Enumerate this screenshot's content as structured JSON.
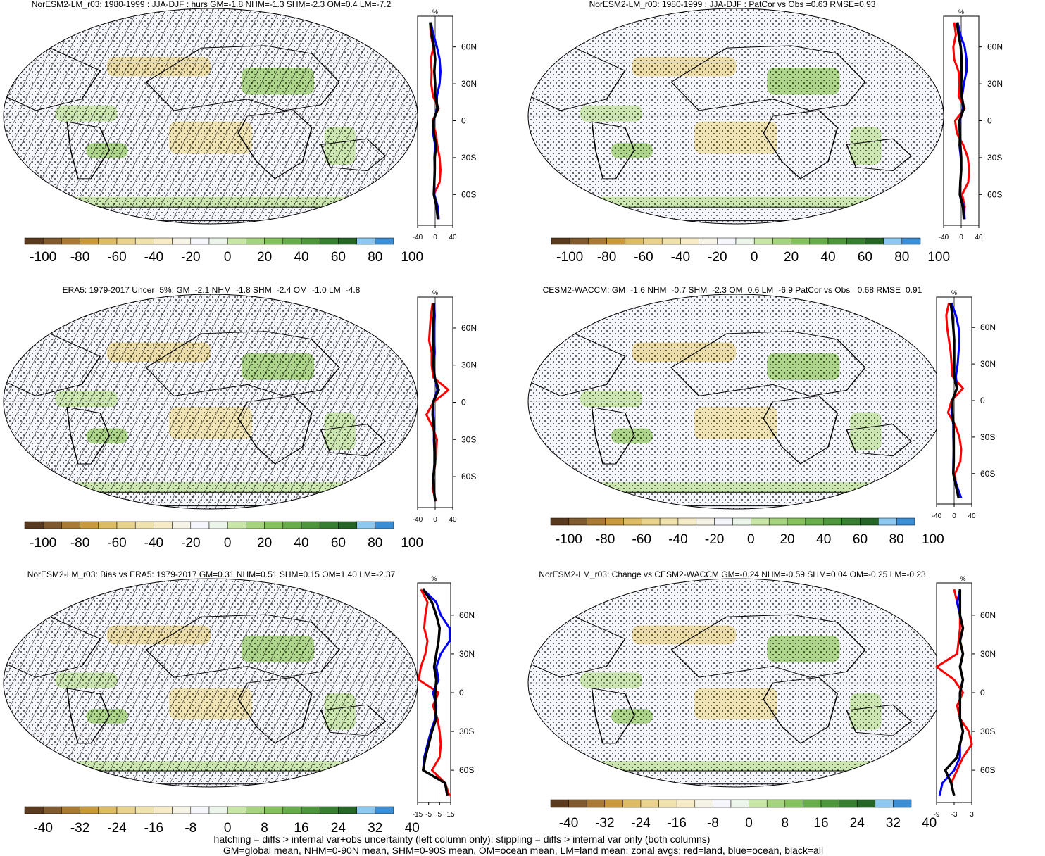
{
  "colorbars": {
    "pct": {
      "colors": [
        "#5a3a1e",
        "#7e5a2e",
        "#a87a33",
        "#c99a3c",
        "#dcbb62",
        "#e9d38c",
        "#f0e2ac",
        "#f5ecc7",
        "#f5f2e6",
        "#f5f5fc",
        "#ecf5ea",
        "#c8e6a6",
        "#a5d37e",
        "#85c25e",
        "#67ad4a",
        "#4d963c",
        "#387e31",
        "#256627",
        "#8cc8f0",
        "#3a8ed6"
      ],
      "labels": [
        "-100",
        "-80",
        "-60",
        "-40",
        "-20",
        "0",
        "20",
        "40",
        "60",
        "80",
        "100"
      ]
    },
    "diff": {
      "colors": [
        "#5a3a1e",
        "#7e5a2e",
        "#a87a33",
        "#c99a3c",
        "#dcbb62",
        "#e9d38c",
        "#f0e2ac",
        "#f5ecc7",
        "#f5f2e6",
        "#f5f5fc",
        "#ecf5ea",
        "#c8e6a6",
        "#a5d37e",
        "#85c25e",
        "#67ad4a",
        "#4d963c",
        "#387e31",
        "#256627",
        "#8cc8f0",
        "#3a8ed6"
      ],
      "labels": [
        "-40",
        "-32",
        "-24",
        "-16",
        "-8",
        "0",
        "8",
        "16",
        "24",
        "32",
        "40"
      ]
    }
  },
  "chart_data": [
    {
      "type": "heatmap",
      "title": "NorESM2-LM_r03: 1980-1999 : JJA-DJF : hurs GM=-1.8 NHM=-1.3 SHM=-2.3 OM=0.4 LM=-7.2",
      "colorbar": "pct",
      "hatching": true,
      "zonal_mean": {
        "unit": "%",
        "xlim": [
          -40,
          40
        ],
        "xticks": [
          "-40",
          "0",
          "40"
        ],
        "yticks": [
          "60N",
          "30N",
          "0",
          "30S",
          "60S"
        ],
        "lat": [
          80,
          70,
          60,
          50,
          40,
          30,
          20,
          10,
          0,
          -10,
          -20,
          -30,
          -40,
          -50,
          -60,
          -70,
          -80
        ],
        "series": [
          {
            "color": "red",
            "values": [
              -12,
              -10,
              -4,
              -10,
              -8,
              -9,
              -5,
              8,
              -6,
              1,
              5,
              10,
              12,
              10,
              -3,
              5,
              8
            ]
          },
          {
            "color": "blue",
            "values": [
              -10,
              -4,
              4,
              10,
              12,
              10,
              4,
              4,
              -3,
              -5,
              0,
              -2,
              -1,
              -2,
              -2,
              6,
              8
            ]
          },
          {
            "color": "black",
            "values": [
              -11,
              -8,
              -3,
              0,
              -2,
              0,
              0,
              6,
              -4,
              -3,
              2,
              -1,
              -1,
              -2,
              -3,
              3,
              6
            ]
          }
        ]
      }
    },
    {
      "type": "heatmap",
      "title": "NorESM2-LM_r03: 1980-1999 : JJA-DJF : PatCor vs Obs =0.63 RMSE=0.93",
      "colorbar": "pct",
      "hatching": false,
      "zonal_mean": {
        "unit": "%",
        "xlim": [
          -40,
          40
        ],
        "xticks": [
          "-40",
          "0",
          "40"
        ],
        "yticks": [
          "60N",
          "30N",
          "0",
          "30S",
          "60S"
        ],
        "lat": [
          80,
          70,
          60,
          50,
          40,
          30,
          20,
          10,
          0,
          -10,
          -20,
          -30,
          -40,
          -50,
          -60,
          -70,
          -80
        ],
        "series": [
          {
            "color": "red",
            "values": [
              -16,
              -12,
              -18,
              -16,
              -6,
              -4,
              -6,
              8,
              -14,
              -10,
              5,
              15,
              18,
              16,
              2,
              8,
              6
            ]
          },
          {
            "color": "blue",
            "values": [
              -8,
              -2,
              8,
              12,
              12,
              6,
              2,
              4,
              -3,
              -3,
              -4,
              -1,
              0,
              -2,
              -3,
              6,
              8
            ]
          },
          {
            "color": "black",
            "values": [
              -10,
              -6,
              -1,
              1,
              1,
              0,
              1,
              6,
              -4,
              -3,
              -2,
              0,
              0,
              -2,
              -3,
              4,
              6
            ]
          }
        ]
      }
    },
    {
      "type": "heatmap",
      "title": "ERA5: 1979-2017 Uncer=5%: GM=-2.1 NHM=-1.8 SHM=-2.4 OM=-1.0 LM=-4.8",
      "colorbar": "pct",
      "hatching": true,
      "zonal_mean": {
        "unit": "%",
        "xlim": [
          -40,
          40
        ],
        "xticks": [
          "-40",
          "0",
          "40"
        ],
        "yticks": [
          "60N",
          "30N",
          "0",
          "30S",
          "60S"
        ],
        "lat": [
          80,
          70,
          60,
          50,
          40,
          30,
          20,
          10,
          0,
          -10,
          -20,
          -30,
          -40,
          -50,
          -60,
          -70,
          -80
        ],
        "series": [
          {
            "color": "red",
            "values": [
              -6,
              -10,
              -12,
              -14,
              -8,
              -8,
              -4,
              30,
              -4,
              -20,
              -6,
              4,
              2,
              0,
              -4,
              -6,
              2
            ]
          },
          {
            "color": "blue",
            "values": [
              -2,
              -1,
              -2,
              -2,
              -1,
              -3,
              -1,
              5,
              -5,
              -4,
              -2,
              -3,
              -2,
              -2,
              -4,
              -3,
              0
            ]
          },
          {
            "color": "black",
            "values": [
              -3,
              -3,
              -5,
              -5,
              -3,
              -4,
              -1,
              8,
              -5,
              -6,
              -3,
              -2,
              -1,
              -1,
              -4,
              -3,
              0
            ]
          }
        ]
      }
    },
    {
      "type": "heatmap",
      "title": "CESM2-WACCM: GM=-1.6 NHM=-0.7 SHM=-2.3 OM=0.6 LM=-6.9 PatCor vs Obs =0.68 RMSE=0.91",
      "colorbar": "pct",
      "hatching": false,
      "zonal_mean": {
        "unit": "%",
        "xlim": [
          -40,
          40
        ],
        "xticks": [
          "-40",
          "0",
          "40"
        ],
        "yticks": [
          "60N",
          "30N",
          "0",
          "30S",
          "60S"
        ],
        "lat": [
          80,
          70,
          60,
          50,
          40,
          30,
          20,
          10,
          0,
          -10,
          -20,
          -30,
          -40,
          -50,
          -60,
          -70,
          -80
        ],
        "series": [
          {
            "color": "red",
            "values": [
              -12,
              -18,
              -16,
              -12,
              -8,
              -6,
              -4,
              20,
              -6,
              -14,
              2,
              12,
              16,
              14,
              2,
              4,
              10
            ]
          },
          {
            "color": "blue",
            "values": [
              -6,
              4,
              10,
              12,
              10,
              8,
              4,
              6,
              -4,
              -6,
              -2,
              -2,
              -1,
              -2,
              -2,
              6,
              16
            ]
          },
          {
            "color": "black",
            "values": [
              -8,
              -4,
              -2,
              0,
              0,
              0,
              0,
              6,
              -4,
              -4,
              -1,
              -1,
              -1,
              -1,
              -2,
              4,
              10
            ]
          }
        ]
      }
    },
    {
      "type": "heatmap",
      "title": "NorESM2-LM_r03: Bias vs ERA5: 1979-2017 GM=0.31 NHM=0.51 SHM=0.15 OM=1.40 LM=-2.37",
      "colorbar": "diff",
      "hatching": true,
      "zonal_mean": {
        "unit": "%",
        "xlim": [
          -15,
          15
        ],
        "xticks": [
          "-15",
          "-5",
          "5",
          "15"
        ],
        "yticks": [
          "60N",
          "30N",
          "0",
          "30S",
          "60S"
        ],
        "lat": [
          80,
          70,
          60,
          50,
          40,
          30,
          20,
          10,
          0,
          -10,
          -20,
          -30,
          -40,
          -50,
          -60,
          -70,
          -80
        ],
        "series": [
          {
            "color": "red",
            "values": [
              -12,
              -6,
              -8,
              -9,
              -6,
              -8,
              -12,
              -14,
              4,
              -1,
              3,
              5,
              6,
              5,
              -2,
              10,
              14
            ]
          },
          {
            "color": "blue",
            "values": [
              -10,
              2,
              6,
              14,
              14,
              6,
              2,
              4,
              -1,
              2,
              1,
              -3,
              -6,
              -9,
              -10,
              10,
              12
            ]
          },
          {
            "color": "black",
            "values": [
              -10,
              -2,
              2,
              5,
              4,
              2,
              0,
              2,
              1,
              1,
              2,
              -2,
              -5,
              -8,
              -10,
              10,
              12
            ]
          }
        ]
      }
    },
    {
      "type": "heatmap",
      "title": "NorESM2-LM_r03: Change vs CESM2-WACCM GM=-0.24 NHM=-0.59 SHM=0.04 OM=-0.25 LM=-0.23",
      "colorbar": "diff",
      "hatching": false,
      "zonal_mean": {
        "unit": "%",
        "xlim": [
          -9,
          3
        ],
        "xticks": [
          "-9",
          "-3",
          "3"
        ],
        "yticks": [
          "60N",
          "30N",
          "0",
          "30S",
          "60S"
        ],
        "lat": [
          80,
          70,
          60,
          50,
          40,
          30,
          20,
          10,
          0,
          -10,
          -20,
          -30,
          -40,
          -50,
          -60,
          -70,
          -80
        ],
        "series": [
          {
            "color": "red",
            "values": [
              -3,
              -2,
              -1,
              -1,
              -1.5,
              -2,
              -9,
              -3,
              0,
              -2,
              -1,
              2,
              3,
              0,
              -2,
              -4,
              -3
            ]
          },
          {
            "color": "blue",
            "values": [
              -1,
              -2,
              -1,
              0,
              -1,
              0,
              -1,
              0,
              -1,
              -1,
              -1,
              0,
              -1,
              -1,
              -3,
              -7,
              -8
            ]
          },
          {
            "color": "black",
            "values": [
              -1,
              -1,
              -1,
              0,
              -1,
              0,
              -1,
              0,
              -1,
              -1,
              -1,
              0,
              -1,
              -2,
              -6,
              -4,
              -3
            ]
          }
        ]
      }
    }
  ],
  "footer": {
    "line1": "hatching = diffs > internal var+obs uncertainty (left column only); stippling = diffs > internal var only (both columns)",
    "line2": "GM=global mean, NHM=0-90N mean, SHM=0-90S mean, OM=ocean mean, LM=land mean; zonal avgs: red=land, blue=ocean, black=all"
  }
}
